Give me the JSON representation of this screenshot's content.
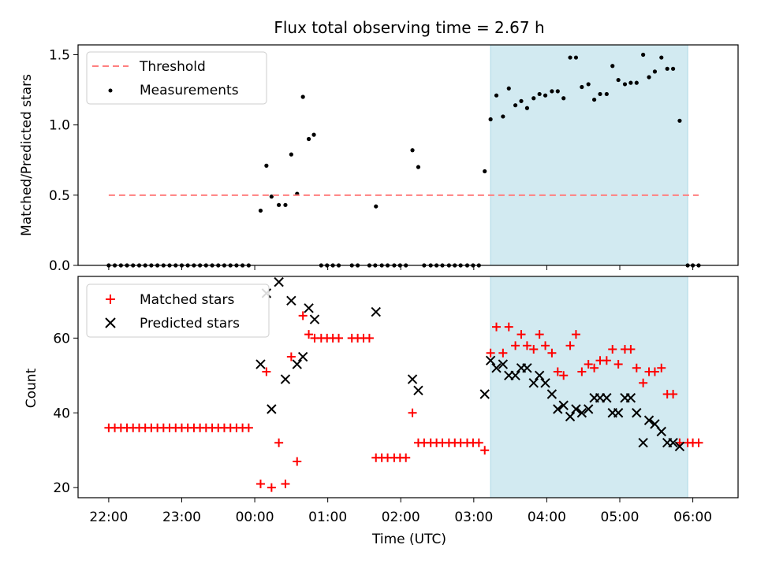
{
  "title": "Flux total observing time = 2.67 h",
  "colors": {
    "threshold": "#ff7f7f",
    "measurement": "#000000",
    "matched": "#ff0000",
    "predicted": "#000000",
    "highlight": "#add8e6"
  },
  "chart_data": [
    {
      "type": "scatter",
      "panel": "top",
      "ylabel": "Matched/Predicted stars",
      "xlim": [
        -0.42,
        8.62
      ],
      "ylim": [
        0,
        1.57
      ],
      "yticks": [
        0.0,
        0.5,
        1.0,
        1.5
      ],
      "ytick_labels": [
        "0.0",
        "0.5",
        "1.0",
        "1.5"
      ],
      "highlight_span": [
        5.23,
        7.93
      ],
      "legend": {
        "position": "top-left",
        "entries": [
          "Threshold",
          "Measurements"
        ]
      },
      "threshold": {
        "name": "Threshold",
        "x": [
          0,
          8.08
        ],
        "y": 0.5
      },
      "series": [
        {
          "name": "Measurements",
          "points": [
            [
              0.0,
              0
            ],
            [
              0.083,
              0
            ],
            [
              0.167,
              0
            ],
            [
              0.25,
              0
            ],
            [
              0.333,
              0
            ],
            [
              0.417,
              0
            ],
            [
              0.5,
              0
            ],
            [
              0.583,
              0
            ],
            [
              0.667,
              0
            ],
            [
              0.75,
              0
            ],
            [
              0.833,
              0
            ],
            [
              0.917,
              0
            ],
            [
              1.0,
              0
            ],
            [
              1.083,
              0
            ],
            [
              1.167,
              0
            ],
            [
              1.25,
              0
            ],
            [
              1.333,
              0
            ],
            [
              1.417,
              0
            ],
            [
              1.5,
              0
            ],
            [
              1.583,
              0
            ],
            [
              1.667,
              0
            ],
            [
              1.75,
              0
            ],
            [
              1.833,
              0
            ],
            [
              1.917,
              0
            ],
            [
              2.08,
              0.39
            ],
            [
              2.16,
              0.71
            ],
            [
              2.23,
              0.49
            ],
            [
              2.33,
              0.43
            ],
            [
              2.42,
              0.43
            ],
            [
              2.5,
              0.79
            ],
            [
              2.58,
              0.51
            ],
            [
              2.66,
              1.2
            ],
            [
              2.74,
              0.9
            ],
            [
              2.81,
              0.93
            ],
            [
              2.91,
              0
            ],
            [
              2.99,
              0
            ],
            [
              3.07,
              0
            ],
            [
              3.15,
              0
            ],
            [
              3.33,
              0
            ],
            [
              3.41,
              0
            ],
            [
              3.57,
              0
            ],
            [
              3.65,
              0
            ],
            [
              3.66,
              0.42
            ],
            [
              3.74,
              0
            ],
            [
              3.82,
              0
            ],
            [
              3.91,
              0
            ],
            [
              3.99,
              0
            ],
            [
              4.07,
              0
            ],
            [
              4.16,
              0.82
            ],
            [
              4.24,
              0.7
            ],
            [
              4.32,
              0
            ],
            [
              4.41,
              0
            ],
            [
              4.49,
              0
            ],
            [
              4.57,
              0
            ],
            [
              4.66,
              0
            ],
            [
              4.74,
              0
            ],
            [
              4.82,
              0
            ],
            [
              4.91,
              0
            ],
            [
              4.99,
              0
            ],
            [
              5.07,
              0
            ],
            [
              5.15,
              0.67
            ],
            [
              5.23,
              1.04
            ],
            [
              5.31,
              1.21
            ],
            [
              5.4,
              1.06
            ],
            [
              5.48,
              1.26
            ],
            [
              5.57,
              1.14
            ],
            [
              5.65,
              1.17
            ],
            [
              5.73,
              1.12
            ],
            [
              5.82,
              1.19
            ],
            [
              5.9,
              1.22
            ],
            [
              5.98,
              1.21
            ],
            [
              6.07,
              1.24
            ],
            [
              6.15,
              1.24
            ],
            [
              6.23,
              1.19
            ],
            [
              6.32,
              1.48
            ],
            [
              6.4,
              1.48
            ],
            [
              6.48,
              1.27
            ],
            [
              6.57,
              1.29
            ],
            [
              6.65,
              1.18
            ],
            [
              6.73,
              1.22
            ],
            [
              6.82,
              1.22
            ],
            [
              6.9,
              1.42
            ],
            [
              6.98,
              1.32
            ],
            [
              7.07,
              1.29
            ],
            [
              7.15,
              1.3
            ],
            [
              7.23,
              1.3
            ],
            [
              7.32,
              1.5
            ],
            [
              7.4,
              1.34
            ],
            [
              7.48,
              1.38
            ],
            [
              7.57,
              1.48
            ],
            [
              7.65,
              1.4
            ],
            [
              7.73,
              1.4
            ],
            [
              7.82,
              1.03
            ],
            [
              7.93,
              0
            ],
            [
              8.0,
              0
            ],
            [
              8.08,
              0
            ]
          ]
        }
      ]
    },
    {
      "type": "scatter",
      "panel": "bottom",
      "xlabel": "Time (UTC)",
      "ylabel": "Count",
      "xlim": [
        -0.42,
        8.62
      ],
      "ylim": [
        17.3,
        76.5
      ],
      "xticks": [
        0,
        1,
        2,
        3,
        4,
        5,
        6,
        7,
        8
      ],
      "xtick_labels": [
        "22:00",
        "23:00",
        "00:00",
        "01:00",
        "02:00",
        "03:00",
        "04:00",
        "05:00",
        "06:00"
      ],
      "yticks": [
        20,
        40,
        60
      ],
      "ytick_labels": [
        "20",
        "40",
        "60"
      ],
      "highlight_span": [
        5.23,
        7.93
      ],
      "legend": {
        "position": "top-left",
        "entries": [
          "Matched stars",
          "Predicted stars"
        ]
      },
      "series": [
        {
          "name": "Matched stars",
          "marker": "plus",
          "points": [
            [
              0.0,
              36
            ],
            [
              0.083,
              36
            ],
            [
              0.167,
              36
            ],
            [
              0.25,
              36
            ],
            [
              0.333,
              36
            ],
            [
              0.417,
              36
            ],
            [
              0.5,
              36
            ],
            [
              0.583,
              36
            ],
            [
              0.667,
              36
            ],
            [
              0.75,
              36
            ],
            [
              0.833,
              36
            ],
            [
              0.917,
              36
            ],
            [
              1.0,
              36
            ],
            [
              1.083,
              36
            ],
            [
              1.167,
              36
            ],
            [
              1.25,
              36
            ],
            [
              1.333,
              36
            ],
            [
              1.417,
              36
            ],
            [
              1.5,
              36
            ],
            [
              1.583,
              36
            ],
            [
              1.667,
              36
            ],
            [
              1.75,
              36
            ],
            [
              1.833,
              36
            ],
            [
              1.917,
              36
            ],
            [
              2.08,
              21
            ],
            [
              2.16,
              51
            ],
            [
              2.23,
              20
            ],
            [
              2.33,
              32
            ],
            [
              2.42,
              21
            ],
            [
              2.5,
              55
            ],
            [
              2.58,
              27
            ],
            [
              2.66,
              66
            ],
            [
              2.74,
              61
            ],
            [
              2.82,
              60
            ],
            [
              2.91,
              60
            ],
            [
              2.99,
              60
            ],
            [
              3.07,
              60
            ],
            [
              3.15,
              60
            ],
            [
              3.33,
              60
            ],
            [
              3.41,
              60
            ],
            [
              3.49,
              60
            ],
            [
              3.57,
              60
            ],
            [
              3.66,
              28
            ],
            [
              3.74,
              28
            ],
            [
              3.82,
              28
            ],
            [
              3.91,
              28
            ],
            [
              3.99,
              28
            ],
            [
              4.07,
              28
            ],
            [
              4.16,
              40
            ],
            [
              4.24,
              32
            ],
            [
              4.32,
              32
            ],
            [
              4.41,
              32
            ],
            [
              4.49,
              32
            ],
            [
              4.57,
              32
            ],
            [
              4.66,
              32
            ],
            [
              4.74,
              32
            ],
            [
              4.82,
              32
            ],
            [
              4.91,
              32
            ],
            [
              4.99,
              32
            ],
            [
              5.07,
              32
            ],
            [
              5.15,
              30
            ],
            [
              5.23,
              56
            ],
            [
              5.31,
              63
            ],
            [
              5.4,
              56
            ],
            [
              5.48,
              63
            ],
            [
              5.57,
              58
            ],
            [
              5.65,
              61
            ],
            [
              5.73,
              58
            ],
            [
              5.82,
              57
            ],
            [
              5.9,
              61
            ],
            [
              5.98,
              58
            ],
            [
              6.07,
              56
            ],
            [
              6.15,
              51
            ],
            [
              6.23,
              50
            ],
            [
              6.32,
              58
            ],
            [
              6.4,
              61
            ],
            [
              6.48,
              51
            ],
            [
              6.57,
              53
            ],
            [
              6.65,
              52
            ],
            [
              6.73,
              54
            ],
            [
              6.82,
              54
            ],
            [
              6.9,
              57
            ],
            [
              6.98,
              53
            ],
            [
              7.07,
              57
            ],
            [
              7.15,
              57
            ],
            [
              7.23,
              52
            ],
            [
              7.32,
              48
            ],
            [
              7.4,
              51
            ],
            [
              7.48,
              51
            ],
            [
              7.57,
              52
            ],
            [
              7.65,
              45
            ],
            [
              7.73,
              45
            ],
            [
              7.82,
              32
            ],
            [
              7.93,
              32
            ],
            [
              8.0,
              32
            ],
            [
              8.08,
              32
            ]
          ]
        },
        {
          "name": "Predicted stars",
          "marker": "x",
          "points": [
            [
              2.08,
              53
            ],
            [
              2.16,
              72
            ],
            [
              2.23,
              41
            ],
            [
              2.33,
              75
            ],
            [
              2.42,
              49
            ],
            [
              2.5,
              70
            ],
            [
              2.58,
              53
            ],
            [
              2.66,
              55
            ],
            [
              2.74,
              68
            ],
            [
              2.82,
              65
            ],
            [
              3.66,
              67
            ],
            [
              4.16,
              49
            ],
            [
              4.24,
              46
            ],
            [
              5.15,
              45
            ],
            [
              5.23,
              54
            ],
            [
              5.31,
              52
            ],
            [
              5.4,
              53
            ],
            [
              5.48,
              50
            ],
            [
              5.57,
              50
            ],
            [
              5.65,
              52
            ],
            [
              5.73,
              52
            ],
            [
              5.82,
              48
            ],
            [
              5.9,
              50
            ],
            [
              5.98,
              48
            ],
            [
              6.07,
              45
            ],
            [
              6.15,
              41
            ],
            [
              6.23,
              42
            ],
            [
              6.32,
              39
            ],
            [
              6.4,
              41
            ],
            [
              6.48,
              40
            ],
            [
              6.57,
              41
            ],
            [
              6.65,
              44
            ],
            [
              6.73,
              44
            ],
            [
              6.82,
              44
            ],
            [
              6.9,
              40
            ],
            [
              6.98,
              40
            ],
            [
              7.07,
              44
            ],
            [
              7.15,
              44
            ],
            [
              7.23,
              40
            ],
            [
              7.32,
              32
            ],
            [
              7.4,
              38
            ],
            [
              7.48,
              37
            ],
            [
              7.57,
              35
            ],
            [
              7.65,
              32
            ],
            [
              7.73,
              32
            ],
            [
              7.82,
              31
            ]
          ]
        }
      ]
    }
  ]
}
